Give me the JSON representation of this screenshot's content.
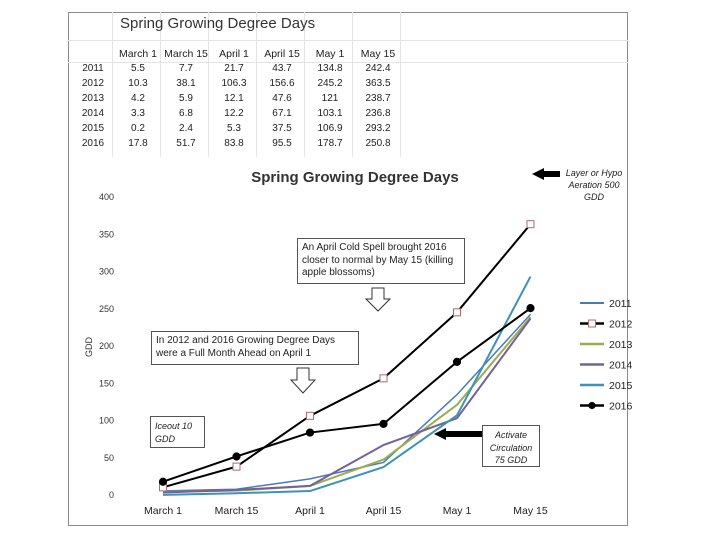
{
  "table": {
    "title": "Spring Growing Degree Days",
    "columns": [
      "March 1",
      "March 15",
      "April 1",
      "April 15",
      "May 1",
      "May 15"
    ],
    "rows": [
      {
        "year": "2011",
        "values": [
          "5.5",
          "7.7",
          "21.7",
          "43.7",
          "134.8",
          "242.4"
        ]
      },
      {
        "year": "2012",
        "values": [
          "10.3",
          "38.1",
          "106.3",
          "156.6",
          "245.2",
          "363.5"
        ]
      },
      {
        "year": "2013",
        "values": [
          "4.2",
          "5.9",
          "12.1",
          "47.6",
          "121",
          "238.7"
        ]
      },
      {
        "year": "2014",
        "values": [
          "3.3",
          "6.8",
          "12.2",
          "67.1",
          "103.1",
          "236.8"
        ]
      },
      {
        "year": "2015",
        "values": [
          "0.2",
          "2.4",
          "5.3",
          "37.5",
          "106.9",
          "293.2"
        ]
      },
      {
        "year": "2016",
        "values": [
          "17.8",
          "51.7",
          "83.8",
          "95.5",
          "178.7",
          "250.8"
        ]
      }
    ]
  },
  "chart_data": {
    "type": "line",
    "title": "Spring Growing Degree Days",
    "xlabel": "",
    "ylabel": "GDD",
    "categories": [
      "March 1",
      "March 15",
      "April 1",
      "April 15",
      "May 1",
      "May 15"
    ],
    "ylim": [
      0,
      400
    ],
    "yticks": [
      0,
      50,
      100,
      150,
      200,
      250,
      300,
      350,
      400
    ],
    "grid": false,
    "legend_position": "right",
    "series": [
      {
        "name": "2011",
        "color": "#4a7ab8",
        "marker": "none",
        "width": 1.5,
        "values": [
          5.5,
          7.7,
          21.7,
          43.7,
          134.8,
          242.4
        ]
      },
      {
        "name": "2012",
        "color": "#000000",
        "marker": "square-open",
        "markerColor": "#b06a6a",
        "width": 2,
        "values": [
          10.3,
          38.1,
          106.3,
          156.6,
          245.2,
          363.5
        ]
      },
      {
        "name": "2013",
        "color": "#9aae4e",
        "marker": "none",
        "width": 2,
        "values": [
          4.2,
          5.9,
          12.1,
          47.6,
          121,
          238.7
        ]
      },
      {
        "name": "2014",
        "color": "#75609a",
        "marker": "none",
        "width": 2,
        "values": [
          3.3,
          6.8,
          12.2,
          67.1,
          103.1,
          236.8
        ]
      },
      {
        "name": "2015",
        "color": "#3e93b3",
        "marker": "none",
        "width": 2,
        "values": [
          0.2,
          2.4,
          5.3,
          37.5,
          106.9,
          293.2
        ]
      },
      {
        "name": "2016",
        "color": "#000000",
        "marker": "circle",
        "markerColor": "#000000",
        "width": 2,
        "values": [
          17.8,
          51.7,
          83.8,
          95.5,
          178.7,
          250.8
        ]
      }
    ],
    "annotations": [
      "Layer or Hypo Aeration 500 GDD",
      "An April Cold Spell brought 2016 closer to normal by May 15 (killing apple blossoms)",
      "In 2012 and 2016  Growing Degree Days were a Full Month Ahead on April 1",
      "Iceout 10 GDD",
      "Activate Circulation 75 GDD"
    ]
  },
  "callouts": {
    "aeration": "Layer or Hypo Aeration 500 GDD",
    "cold_spell": "An April Cold Spell brought 2016 closer to normal by May 15 (killing apple blossoms)",
    "month_ahead": "In 2012 and 2016  Growing Degree Days were a Full Month Ahead on April 1",
    "iceout": "Iceout 10 GDD",
    "circulation": "Activate Circulation 75 GDD"
  }
}
